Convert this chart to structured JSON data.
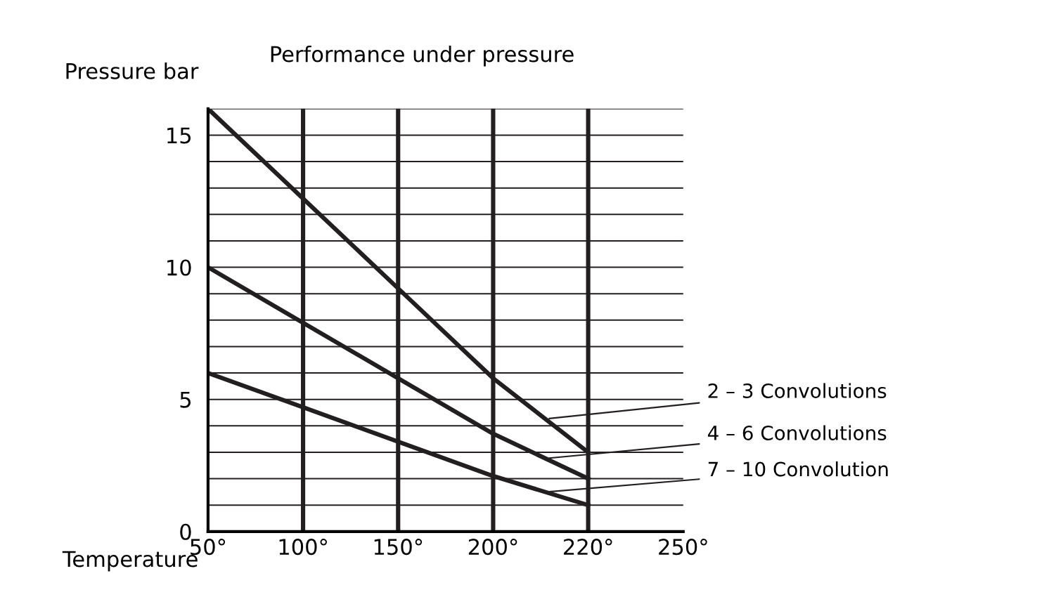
{
  "chart_data": {
    "type": "line",
    "title": "Performance under pressure",
    "xlabel": "Temperature",
    "ylabel": "Pressure bar",
    "categories": [
      "50°",
      "100°",
      "150°",
      "200°",
      "220°",
      "250°"
    ],
    "series": [
      {
        "name": "2 – 3 Convolutions",
        "color": "#231f20",
        "values": [
          16,
          12.6,
          9.2,
          5.8,
          3,
          null
        ]
      },
      {
        "name": "4 – 6 Convolutions",
        "color": "#231f20",
        "values": [
          10,
          7.9,
          5.8,
          3.7,
          2,
          null
        ]
      },
      {
        "name": "7 – 10 Convolution",
        "color": "#231f20",
        "values": [
          6,
          4.7,
          3.4,
          2.1,
          1,
          null
        ]
      }
    ],
    "ylim": [
      0,
      16
    ],
    "yticks": [
      0,
      {
        "value": 1,
        "label": null
      },
      {
        "value": 2,
        "label": null
      },
      {
        "value": 3,
        "label": null
      },
      {
        "value": 4,
        "label": null
      },
      5,
      {
        "value": 6,
        "label": null
      },
      {
        "value": 7,
        "label": null
      },
      {
        "value": 8,
        "label": null
      },
      {
        "value": 9,
        "label": null
      },
      10,
      {
        "value": 11,
        "label": null
      },
      {
        "value": 12,
        "label": null
      },
      {
        "value": 13,
        "label": null
      },
      {
        "value": 14,
        "label": null
      },
      15,
      {
        "value": 16,
        "label": null
      }
    ],
    "grid": true,
    "legend": false,
    "marker": "none",
    "line_style": "solid"
  }
}
